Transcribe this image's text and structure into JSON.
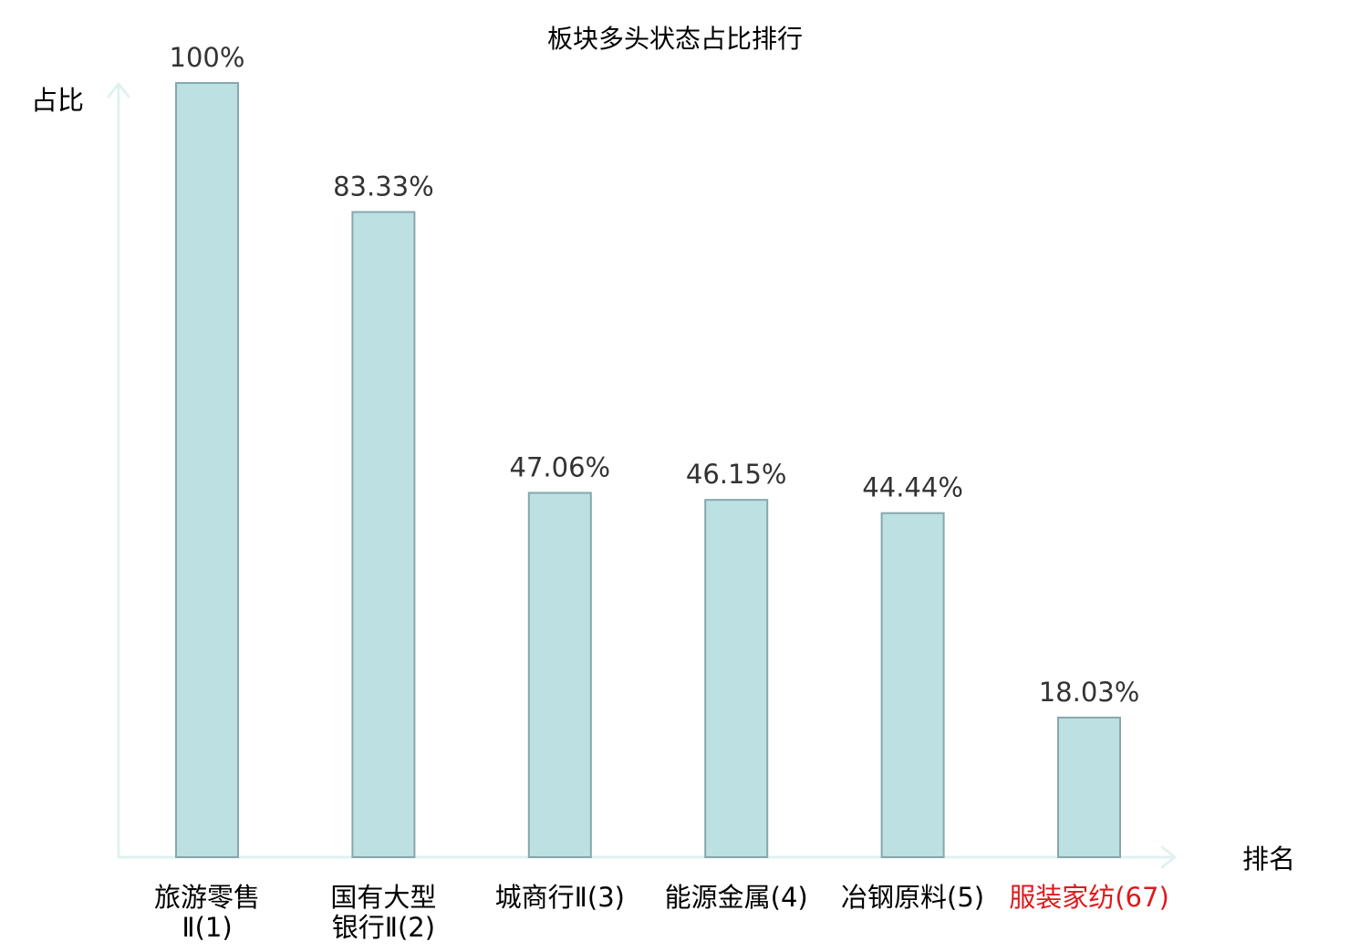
{
  "chart_data": {
    "type": "bar",
    "title": "板块多头状态占比排行",
    "xlabel": "排名",
    "ylabel": "占比",
    "ylim": [
      0,
      100
    ],
    "grid": false,
    "categories": [
      {
        "lines": [
          "旅游零售",
          "Ⅱ(1)"
        ],
        "name": "旅游零售Ⅱ",
        "rank": 1,
        "highlight": false
      },
      {
        "lines": [
          "国有大型",
          "银行Ⅱ(2)"
        ],
        "name": "国有大型银行Ⅱ",
        "rank": 2,
        "highlight": false
      },
      {
        "lines": [
          "城商行Ⅱ(3)"
        ],
        "name": "城商行Ⅱ",
        "rank": 3,
        "highlight": false
      },
      {
        "lines": [
          "能源金属(4)"
        ],
        "name": "能源金属",
        "rank": 4,
        "highlight": false
      },
      {
        "lines": [
          "冶钢原料(5)"
        ],
        "name": "冶钢原料",
        "rank": 5,
        "highlight": false
      },
      {
        "lines": [
          "服装家纺(67)"
        ],
        "name": "服装家纺",
        "rank": 67,
        "highlight": true
      }
    ],
    "values": [
      100,
      83.33,
      47.06,
      46.15,
      44.44,
      18.03
    ],
    "value_labels": [
      "100%",
      "83.33%",
      "47.06%",
      "46.15%",
      "44.44%",
      "18.03%"
    ],
    "colors": {
      "bar_fill": "#bde0e3",
      "bar_stroke": "#86a7ac",
      "axis": "#e0f2f0",
      "text": "#000000",
      "value_label": "#333333",
      "highlight": "#e0191c"
    }
  }
}
